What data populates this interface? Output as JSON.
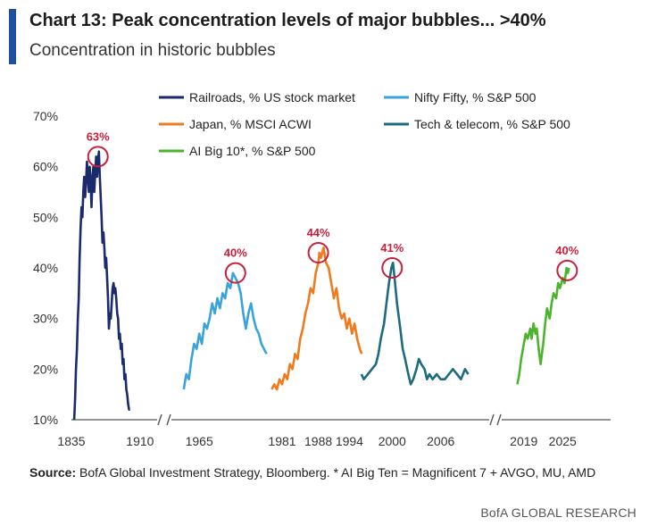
{
  "header": {
    "title": "Chart 13: Peak concentration levels of major bubbles... >40%",
    "subtitle": "Concentration in historic bubbles"
  },
  "source": {
    "label": "Source:",
    "text": " BofA Global Investment Strategy, Bloomberg. * AI Big Ten = Magnificent 7 + AVGO, MU, AMD"
  },
  "footer": {
    "brand": "BofA GLOBAL RESEARCH"
  },
  "colors": {
    "railroads": "#1a2a6c",
    "nifty": "#3aa3dc",
    "japan": "#f07a1e",
    "tech": "#1e6a7e",
    "ai": "#4db32e",
    "peak_circle": "#c8203c"
  },
  "chart_data": {
    "type": "line",
    "y_ticks": [
      "10%",
      "20%",
      "30%",
      "40%",
      "50%",
      "60%",
      "70%"
    ],
    "ylim": [
      10,
      70
    ],
    "axis_breaks": 2,
    "legend_position": "top",
    "x_segments": [
      {
        "range": [
          1835,
          1915
        ],
        "ticks": [
          1835,
          1910
        ]
      },
      {
        "range": [
          1961,
          1996
        ],
        "ticks": [
          1965,
          1981,
          1988,
          1994
        ]
      },
      {
        "range": [
          1996,
          2010
        ],
        "ticks": [
          2000,
          2006
        ]
      },
      {
        "range": [
          2016,
          2028
        ],
        "ticks": [
          2019,
          2025
        ]
      }
    ],
    "series": [
      {
        "name": "Railroads, % US stock market",
        "color_key": "railroads",
        "segment": 0,
        "peak_label": "63%",
        "peak": [
          1864,
          62
        ],
        "points": [
          [
            1838,
            10
          ],
          [
            1839,
            14
          ],
          [
            1840,
            20
          ],
          [
            1841,
            24
          ],
          [
            1842,
            30
          ],
          [
            1843,
            34
          ],
          [
            1844,
            42
          ],
          [
            1845,
            48
          ],
          [
            1846,
            52
          ],
          [
            1847,
            50
          ],
          [
            1848,
            55
          ],
          [
            1849,
            58
          ],
          [
            1850,
            54
          ],
          [
            1851,
            57
          ],
          [
            1852,
            61
          ],
          [
            1853,
            58
          ],
          [
            1854,
            55
          ],
          [
            1855,
            60
          ],
          [
            1856,
            57
          ],
          [
            1857,
            52
          ],
          [
            1858,
            58
          ],
          [
            1859,
            60
          ],
          [
            1860,
            55
          ],
          [
            1861,
            59
          ],
          [
            1862,
            62
          ],
          [
            1863,
            58
          ],
          [
            1864,
            61
          ],
          [
            1865,
            63
          ],
          [
            1866,
            58
          ],
          [
            1867,
            54
          ],
          [
            1868,
            50
          ],
          [
            1869,
            45
          ],
          [
            1870,
            47
          ],
          [
            1871,
            44
          ],
          [
            1872,
            40
          ],
          [
            1873,
            42
          ],
          [
            1874,
            38
          ],
          [
            1875,
            34
          ],
          [
            1876,
            28
          ],
          [
            1877,
            31
          ],
          [
            1878,
            30
          ],
          [
            1879,
            33
          ],
          [
            1880,
            36
          ],
          [
            1881,
            37
          ],
          [
            1882,
            35
          ],
          [
            1883,
            36
          ],
          [
            1884,
            34
          ],
          [
            1885,
            31
          ],
          [
            1886,
            30
          ],
          [
            1887,
            26
          ],
          [
            1888,
            27
          ],
          [
            1889,
            24
          ],
          [
            1890,
            25
          ],
          [
            1891,
            21
          ],
          [
            1892,
            22
          ],
          [
            1893,
            18
          ],
          [
            1894,
            19
          ],
          [
            1895,
            16
          ],
          [
            1896,
            15
          ],
          [
            1897,
            13
          ],
          [
            1898,
            12
          ],
          [
            1899,
            12
          ]
        ]
      },
      {
        "name": "Nifty Fifty, % S&P 500",
        "color_key": "nifty",
        "segment": 1,
        "peak_label": "40%",
        "peak": [
          1972,
          39
        ],
        "points": [
          [
            1962,
            16
          ],
          [
            1962.5,
            19
          ],
          [
            1963,
            18
          ],
          [
            1963.5,
            22
          ],
          [
            1964,
            25
          ],
          [
            1964.5,
            24
          ],
          [
            1965,
            27
          ],
          [
            1965.5,
            25
          ],
          [
            1966,
            29
          ],
          [
            1966.5,
            28
          ],
          [
            1967,
            30
          ],
          [
            1967.5,
            33
          ],
          [
            1968,
            31
          ],
          [
            1968.5,
            34
          ],
          [
            1969,
            32
          ],
          [
            1969.5,
            35
          ],
          [
            1970,
            34
          ],
          [
            1970.5,
            37
          ],
          [
            1971,
            36
          ],
          [
            1971.5,
            39
          ],
          [
            1972,
            38
          ],
          [
            1972.5,
            37
          ],
          [
            1973,
            35
          ],
          [
            1973.5,
            31
          ],
          [
            1974,
            28
          ],
          [
            1974.5,
            31
          ],
          [
            1975,
            33
          ],
          [
            1975.5,
            30
          ],
          [
            1976,
            28
          ],
          [
            1976.5,
            27
          ],
          [
            1977,
            25
          ],
          [
            1977.5,
            24
          ],
          [
            1978,
            23
          ]
        ]
      },
      {
        "name": "Japan, % MSCI ACWI",
        "color_key": "japan",
        "segment": 1,
        "peak_label": "44%",
        "peak": [
          1988,
          43
        ],
        "points": [
          [
            1979,
            16
          ],
          [
            1979.5,
            17
          ],
          [
            1980,
            16
          ],
          [
            1980.5,
            18
          ],
          [
            1981,
            17
          ],
          [
            1981.5,
            19
          ],
          [
            1982,
            18
          ],
          [
            1982.5,
            21
          ],
          [
            1983,
            20
          ],
          [
            1983.5,
            23
          ],
          [
            1984,
            22
          ],
          [
            1984.5,
            26
          ],
          [
            1985,
            28
          ],
          [
            1985.5,
            31
          ],
          [
            1986,
            33
          ],
          [
            1986.5,
            36
          ],
          [
            1987,
            35
          ],
          [
            1987.5,
            39
          ],
          [
            1988,
            41
          ],
          [
            1988.2,
            43
          ],
          [
            1988.5,
            42
          ],
          [
            1989,
            44
          ],
          [
            1989.5,
            41
          ],
          [
            1990,
            40
          ],
          [
            1990.5,
            37
          ],
          [
            1991,
            34
          ],
          [
            1991.5,
            36
          ],
          [
            1992,
            32
          ],
          [
            1992.5,
            30
          ],
          [
            1993,
            31
          ],
          [
            1993.5,
            28
          ],
          [
            1994,
            30
          ],
          [
            1994.5,
            27
          ],
          [
            1995,
            29
          ],
          [
            1995.5,
            26
          ],
          [
            1996,
            24
          ],
          [
            1996.4,
            23
          ]
        ]
      },
      {
        "name": "Tech & telecom, % S&P 500",
        "color_key": "tech",
        "segment": 2,
        "peak_label": "41%",
        "peak": [
          2000,
          40
        ],
        "points": [
          [
            1996.2,
            19
          ],
          [
            1996.5,
            18
          ],
          [
            1997,
            19
          ],
          [
            1997.5,
            20
          ],
          [
            1998,
            21
          ],
          [
            1998.3,
            23
          ],
          [
            1998.6,
            26
          ],
          [
            1999,
            29
          ],
          [
            1999.3,
            33
          ],
          [
            1999.6,
            37
          ],
          [
            1999.9,
            40
          ],
          [
            2000.1,
            41
          ],
          [
            2000.3,
            38
          ],
          [
            2000.6,
            33
          ],
          [
            2001,
            28
          ],
          [
            2001.3,
            24
          ],
          [
            2001.6,
            22
          ],
          [
            2002,
            19
          ],
          [
            2002.3,
            17
          ],
          [
            2002.6,
            18
          ],
          [
            2003,
            20
          ],
          [
            2003.3,
            22
          ],
          [
            2003.6,
            21
          ],
          [
            2004,
            20
          ],
          [
            2004.3,
            18
          ],
          [
            2004.6,
            19
          ],
          [
            2005,
            18
          ],
          [
            2005.5,
            19
          ],
          [
            2006,
            18
          ],
          [
            2006.5,
            18
          ],
          [
            2007,
            19
          ],
          [
            2007.5,
            20
          ],
          [
            2008,
            19
          ],
          [
            2008.5,
            18
          ],
          [
            2009,
            20
          ],
          [
            2009.4,
            19
          ]
        ]
      },
      {
        "name": "AI Big 10*, % S&P 500",
        "color_key": "ai",
        "segment": 3,
        "peak_label": "40%",
        "peak": [
          2025.7,
          39.5
        ],
        "points": [
          [
            2018,
            17
          ],
          [
            2018.3,
            19
          ],
          [
            2018.6,
            22
          ],
          [
            2019,
            25
          ],
          [
            2019.3,
            27
          ],
          [
            2019.6,
            26
          ],
          [
            2020,
            28
          ],
          [
            2020.2,
            26
          ],
          [
            2020.5,
            29
          ],
          [
            2020.8,
            27
          ],
          [
            2021,
            28
          ],
          [
            2021.3,
            24
          ],
          [
            2021.6,
            21
          ],
          [
            2022,
            25
          ],
          [
            2022.3,
            29
          ],
          [
            2022.6,
            32
          ],
          [
            2023,
            30
          ],
          [
            2023.3,
            33
          ],
          [
            2023.6,
            35
          ],
          [
            2024,
            34
          ],
          [
            2024.3,
            37
          ],
          [
            2024.6,
            36
          ],
          [
            2025,
            38
          ],
          [
            2025.3,
            37
          ],
          [
            2025.6,
            40
          ],
          [
            2025.8,
            39
          ],
          [
            2026,
            40
          ]
        ]
      }
    ]
  }
}
